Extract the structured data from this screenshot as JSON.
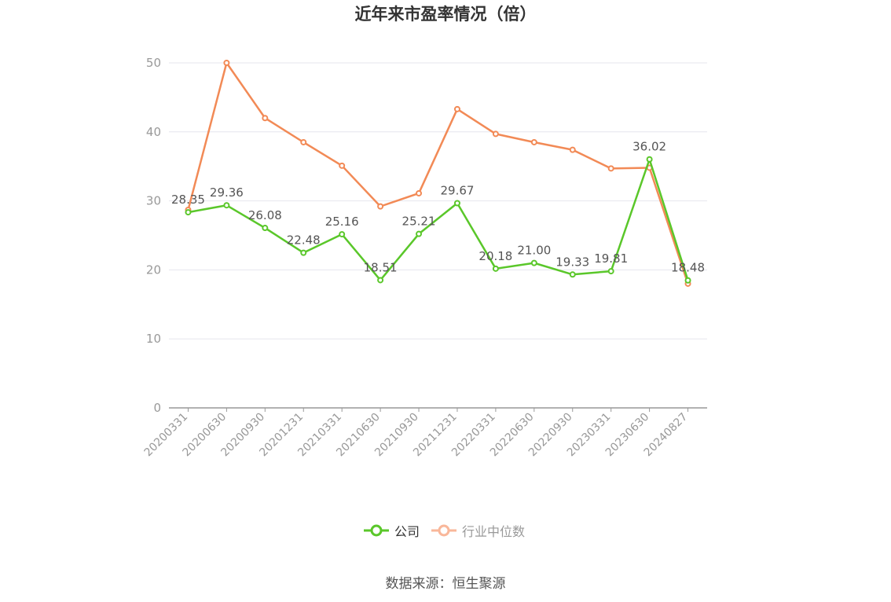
{
  "title": "近年来市盈率情况（倍）",
  "source": "数据来源：恒生聚源",
  "legend": {
    "company": "公司",
    "industry": "行业中位数"
  },
  "colors": {
    "company": "#5ac72a",
    "industry": "#f28a56",
    "industry_legend": "#f9b79a",
    "grid": "#e6e6ee",
    "axis": "#999999"
  },
  "chart_data": {
    "type": "line",
    "title": "近年来市盈率情况（倍）",
    "categories": [
      "20200331",
      "20200630",
      "20200930",
      "20201231",
      "20210331",
      "20210630",
      "20210930",
      "20211231",
      "20220331",
      "20220630",
      "20220930",
      "20230331",
      "20230630",
      "20240827"
    ],
    "ylim": [
      0,
      50
    ],
    "yticks": [
      0,
      10,
      20,
      30,
      40,
      50
    ],
    "grid": true,
    "legend_position": "bottom",
    "series": [
      {
        "name": "公司",
        "values": [
          28.35,
          29.36,
          26.08,
          22.48,
          25.16,
          18.51,
          25.21,
          29.67,
          20.18,
          21.0,
          19.33,
          19.81,
          36.02,
          18.48
        ],
        "labels": [
          "28.35",
          "29.36",
          "26.08",
          "22.48",
          "25.16",
          "18.51",
          "25.21",
          "29.67",
          "20.18",
          "21.00",
          "19.33",
          "19.81",
          "36.02",
          "18.48"
        ]
      },
      {
        "name": "行业中位数",
        "values": [
          28.7,
          50.0,
          42.0,
          38.5,
          35.1,
          29.2,
          31.1,
          43.3,
          39.7,
          38.5,
          37.4,
          34.7,
          34.8,
          18.0
        ]
      }
    ]
  }
}
